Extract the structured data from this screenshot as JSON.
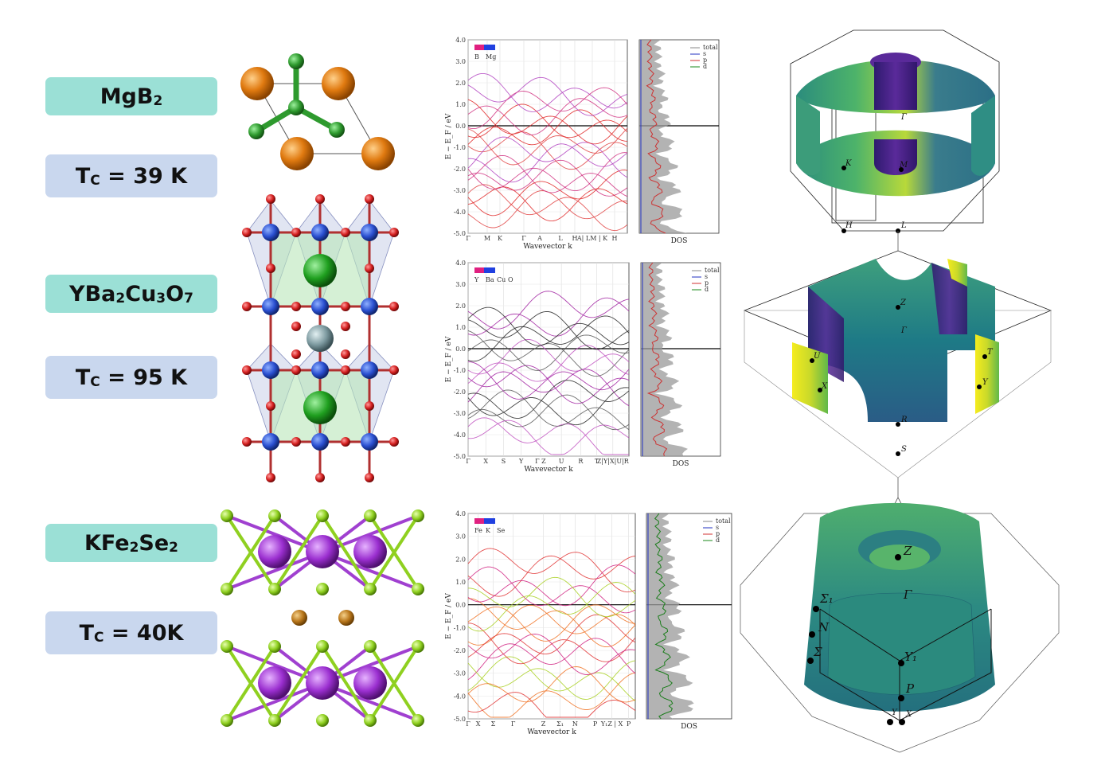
{
  "materials": [
    {
      "name_main": "MgB",
      "name_sub": "2",
      "tc_main": "T",
      "tc_sub": "C",
      "tc_value": " = 39 K"
    },
    {
      "name_main": "YBa",
      "name_sub1": "2",
      "name_mid1": "Cu",
      "name_sub2": "3",
      "name_mid2": "O",
      "name_sub3": "7",
      "tc_main": "T",
      "tc_sub": "C",
      "tc_value": " = 95 K"
    },
    {
      "name_main": "KFe",
      "name_sub1": "2",
      "name_mid1": "Se",
      "name_sub2": "2",
      "tc_main": "T",
      "tc_sub": "C",
      "tc_value": " = 40K"
    }
  ],
  "panels": [
    {
      "ylabel": "E − E_F / eV",
      "xlabel": "Wavevector k",
      "dos_label": "DOS",
      "yticks": [
        "4.0",
        "3.0",
        "2.0",
        "1.0",
        "0.0",
        "-1.0",
        "-2.0",
        "-3.0",
        "-4.0",
        "-5.0"
      ],
      "kpath": [
        "Γ",
        "M",
        "K",
        "Γ",
        "A",
        "L",
        "H",
        "A| LM | K",
        "H"
      ],
      "legend_atoms": [
        "B",
        "Mg"
      ],
      "dos_legend": [
        "total",
        "s",
        "p",
        "d"
      ]
    },
    {
      "ylabel": "E − E_F / eV",
      "xlabel": "Wavevector k",
      "dos_label": "DOS",
      "yticks": [
        "4.0",
        "3.0",
        "2.0",
        "1.0",
        "0.0",
        "-1.0",
        "-2.0",
        "-3.0",
        "-4.0",
        "-5.0"
      ],
      "kpath": [
        "Γ",
        "X",
        "S",
        "Y",
        "Γ Z",
        "U",
        "R",
        "T",
        "Z|Y|X|U|R"
      ],
      "legend_atoms": [
        "Y",
        "Ba",
        "Cu",
        "O"
      ],
      "dos_legend": [
        "total",
        "s",
        "p",
        "d"
      ]
    },
    {
      "ylabel": "E − E_F / eV",
      "xlabel": "Wavevector k",
      "dos_label": "DOS",
      "yticks": [
        "4.0",
        "3.0",
        "2.0",
        "1.0",
        "0.0",
        "-1.0",
        "-2.0",
        "-3.0",
        "-4.0",
        "-5.0"
      ],
      "kpath": [
        "Γ",
        "X",
        "Σ",
        "Γ",
        "Z",
        "Σ₁",
        "N",
        "P",
        "Y₁Z | X",
        "P"
      ],
      "legend_atoms": [
        "Fe",
        "K",
        "Se"
      ],
      "dos_legend": [
        "total",
        "s",
        "p",
        "d"
      ]
    }
  ],
  "fermi1": {
    "gamma": "Γ",
    "K": "K",
    "M": "M",
    "H": "H",
    "L": "L"
  },
  "fermi2": {
    "gamma": "Γ",
    "Z": "Z",
    "U": "U",
    "T": "T",
    "X": "X",
    "Y": "Y",
    "R": "R",
    "S": "S"
  },
  "fermi3": {
    "gamma": "Γ",
    "Z": "Z",
    "S1": "Σ₁",
    "N": "N",
    "Y1": "Y₁",
    "P": "P",
    "X": "X",
    "Y": "Y",
    "S": "Σ"
  },
  "colors": {
    "mat_box": "#9be0d6",
    "tc_box": "#c9d7ee",
    "mg": "#e07a10",
    "b": "#2e9a2e",
    "cu": "#2a4fd0",
    "o": "#d42020",
    "ba": "#1f9f1f",
    "y": "#7d9aa0",
    "fe": "#9b2fd0",
    "se": "#8fd020",
    "k": "#b8761a"
  }
}
